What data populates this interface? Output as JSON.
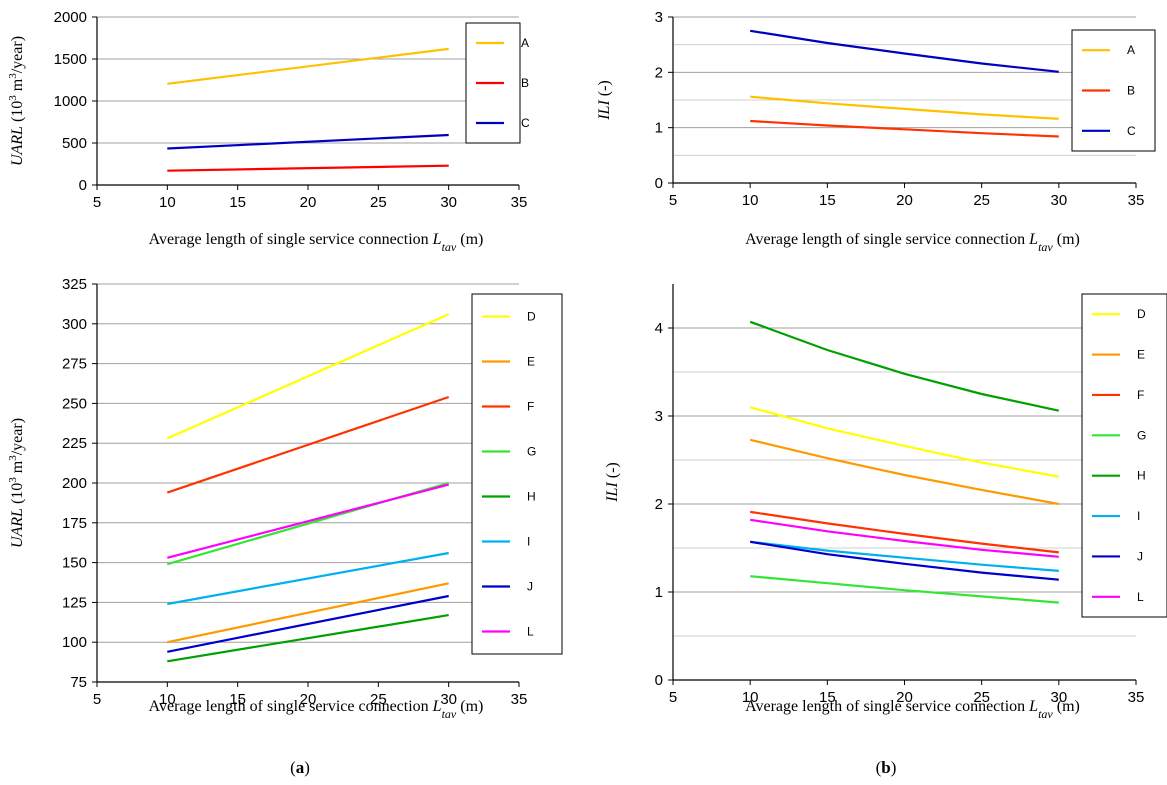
{
  "panel_labels": {
    "a": "a",
    "b": "b"
  },
  "chart_data": [
    {
      "id": "a-top",
      "type": "line",
      "xlabel": {
        "main": "Average length of single service connection ",
        "var": "L",
        "sub": "tav",
        "unit": " (m)"
      },
      "ylabel": {
        "var": "UARL",
        "unit": " (10",
        "sup": "3",
        "unit2": " m",
        "sup2": "3",
        "unit3": "/year)"
      },
      "xlim": [
        5,
        35
      ],
      "xticks": [
        5,
        10,
        15,
        20,
        25,
        30,
        35
      ],
      "ylim": [
        0,
        2000
      ],
      "yticks": [
        0,
        500,
        1000,
        1500,
        2000
      ],
      "grid": true,
      "legend": "right",
      "series": [
        {
          "name": "A",
          "color": "#ffc000",
          "x": [
            10,
            30
          ],
          "y": [
            1205,
            1620
          ]
        },
        {
          "name": "B",
          "color": "#ff0000",
          "x": [
            10,
            30
          ],
          "y": [
            170,
            230
          ]
        },
        {
          "name": "C",
          "color": "#0000c0",
          "x": [
            10,
            30
          ],
          "y": [
            435,
            595
          ]
        }
      ]
    },
    {
      "id": "b-top",
      "type": "line",
      "xlabel": {
        "main": "Average length of single service connection ",
        "var": "L",
        "sub": "tav",
        "unit": " (m)"
      },
      "ylabel": {
        "var": "ILI",
        "unit": " (-)"
      },
      "xlim": [
        5,
        35
      ],
      "xticks": [
        5,
        10,
        15,
        20,
        25,
        30,
        35
      ],
      "ylim": [
        0,
        3
      ],
      "yticks": [
        0,
        1,
        2,
        3
      ],
      "minor_grid": [
        0.5,
        1.5,
        2.5
      ],
      "grid": true,
      "legend": "right",
      "series": [
        {
          "name": "A",
          "color": "#ffc000",
          "x": [
            10,
            15,
            20,
            25,
            30
          ],
          "y": [
            1.56,
            1.44,
            1.34,
            1.24,
            1.16
          ]
        },
        {
          "name": "B",
          "color": "#ff3300",
          "x": [
            10,
            15,
            20,
            25,
            30
          ],
          "y": [
            1.12,
            1.04,
            0.97,
            0.9,
            0.84
          ]
        },
        {
          "name": "C",
          "color": "#0000c0",
          "x": [
            10,
            15,
            20,
            25,
            30
          ],
          "y": [
            2.75,
            2.53,
            2.34,
            2.16,
            2.01
          ]
        }
      ]
    },
    {
      "id": "a-bottom",
      "type": "line",
      "xlabel": {
        "main": "Average length of single service connection ",
        "var": "L",
        "sub": "tav",
        "unit": " (m)"
      },
      "ylabel": {
        "var": "UARL",
        "unit": " (10",
        "sup": "3",
        "unit2": " m",
        "sup2": "3",
        "unit3": "/year)"
      },
      "xlim": [
        5,
        35
      ],
      "xticks": [
        5,
        10,
        15,
        20,
        25,
        30,
        35
      ],
      "ylim": [
        75,
        325
      ],
      "yticks": [
        75,
        100,
        125,
        150,
        175,
        200,
        225,
        250,
        275,
        300,
        325
      ],
      "grid": true,
      "legend": "right",
      "series": [
        {
          "name": "D",
          "color": "#ffff00",
          "x": [
            10,
            30
          ],
          "y": [
            228,
            306
          ]
        },
        {
          "name": "E",
          "color": "#ff9900",
          "x": [
            10,
            30
          ],
          "y": [
            100,
            137
          ]
        },
        {
          "name": "F",
          "color": "#ff3300",
          "x": [
            10,
            30
          ],
          "y": [
            194,
            254
          ]
        },
        {
          "name": "G",
          "color": "#33e633",
          "x": [
            10,
            30
          ],
          "y": [
            149,
            200
          ]
        },
        {
          "name": "H",
          "color": "#00a000",
          "x": [
            10,
            30
          ],
          "y": [
            88,
            117
          ]
        },
        {
          "name": "I",
          "color": "#00b0f0",
          "x": [
            10,
            30
          ],
          "y": [
            124,
            156
          ]
        },
        {
          "name": "J",
          "color": "#0000cc",
          "x": [
            10,
            30
          ],
          "y": [
            94,
            129
          ]
        },
        {
          "name": "L",
          "color": "#ff00ff",
          "x": [
            10,
            30
          ],
          "y": [
            153,
            199
          ]
        }
      ]
    },
    {
      "id": "b-bottom",
      "type": "line",
      "xlabel": {
        "main": "Average length of single service connection ",
        "var": "L",
        "sub": "tav",
        "unit": " (m)"
      },
      "ylabel": {
        "var": "ILI",
        "unit": " (-)"
      },
      "xlim": [
        5,
        35
      ],
      "xticks": [
        5,
        10,
        15,
        20,
        25,
        30,
        35
      ],
      "ylim": [
        0,
        4.5
      ],
      "yticks": [
        0,
        1,
        2,
        3,
        4
      ],
      "minor_grid": [
        0.5,
        1.5,
        2.5,
        3.5
      ],
      "grid": true,
      "legend": "right",
      "series": [
        {
          "name": "D",
          "color": "#ffff00",
          "x": [
            10,
            15,
            20,
            25,
            30
          ],
          "y": [
            3.1,
            2.86,
            2.66,
            2.47,
            2.31
          ]
        },
        {
          "name": "E",
          "color": "#ff9900",
          "x": [
            10,
            15,
            20,
            25,
            30
          ],
          "y": [
            2.73,
            2.52,
            2.33,
            2.16,
            2.0
          ]
        },
        {
          "name": "F",
          "color": "#ff3300",
          "x": [
            10,
            15,
            20,
            25,
            30
          ],
          "y": [
            1.91,
            1.78,
            1.66,
            1.55,
            1.45
          ]
        },
        {
          "name": "G",
          "color": "#33e633",
          "x": [
            10,
            15,
            20,
            25,
            30
          ],
          "y": [
            1.18,
            1.1,
            1.02,
            0.95,
            0.88
          ]
        },
        {
          "name": "H",
          "color": "#00a000",
          "x": [
            10,
            15,
            20,
            25,
            30
          ],
          "y": [
            4.07,
            3.75,
            3.48,
            3.25,
            3.06
          ]
        },
        {
          "name": "I",
          "color": "#00b0f0",
          "x": [
            10,
            15,
            20,
            25,
            30
          ],
          "y": [
            1.57,
            1.47,
            1.39,
            1.31,
            1.24
          ]
        },
        {
          "name": "J",
          "color": "#0000cc",
          "x": [
            10,
            15,
            20,
            25,
            30
          ],
          "y": [
            1.57,
            1.43,
            1.32,
            1.22,
            1.14
          ]
        },
        {
          "name": "L",
          "color": "#ff00ff",
          "x": [
            10,
            15,
            20,
            25,
            30
          ],
          "y": [
            1.82,
            1.69,
            1.58,
            1.48,
            1.4
          ]
        }
      ]
    }
  ]
}
